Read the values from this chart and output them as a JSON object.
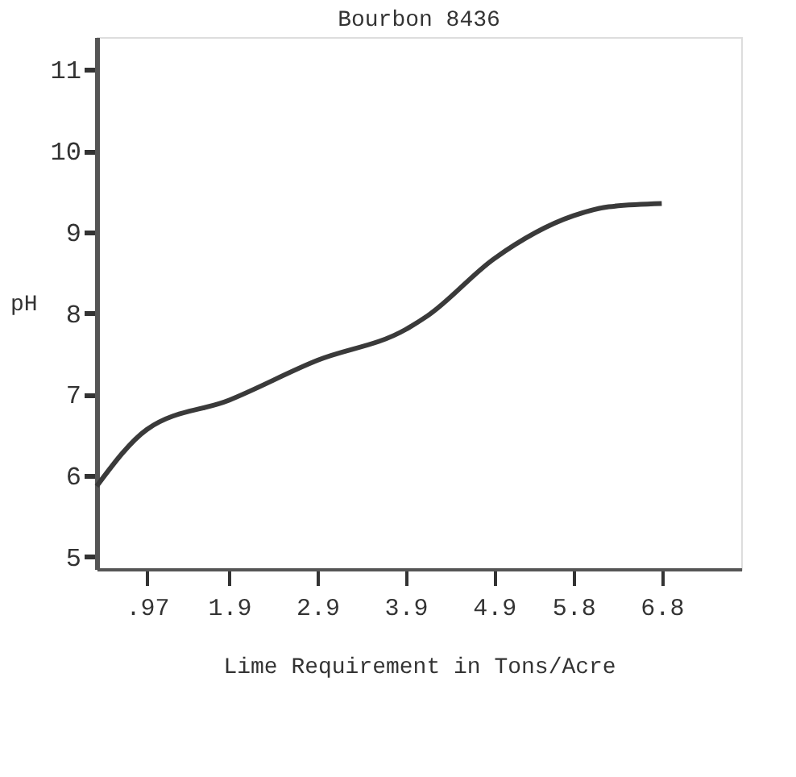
{
  "chart_data": {
    "type": "line",
    "title": "Bourbon 8436",
    "xlabel": "Lime Requirement in Tons/Acre",
    "ylabel": "pH",
    "x": [
      0.4,
      0.97,
      1.9,
      2.9,
      3.9,
      4.15,
      4.9,
      5.8,
      6.2,
      6.8
    ],
    "series": [
      {
        "color": "#3a3a3a",
        "values": [
          5.87,
          6.57,
          6.93,
          7.42,
          7.8,
          7.97,
          8.67,
          9.2,
          9.31,
          9.35
        ]
      }
    ],
    "xlim": [
      0.4,
      7.7
    ],
    "xticks": [
      {
        "value": 0.97,
        "label": ".97"
      },
      1.9,
      2.9,
      3.9,
      4.9,
      5.8,
      6.8
    ],
    "ylim": [
      4.85,
      11.4
    ],
    "yticks": [
      5,
      6,
      7,
      8,
      9,
      10,
      11
    ],
    "grid": false,
    "marker": "none",
    "line_style": "solid"
  }
}
